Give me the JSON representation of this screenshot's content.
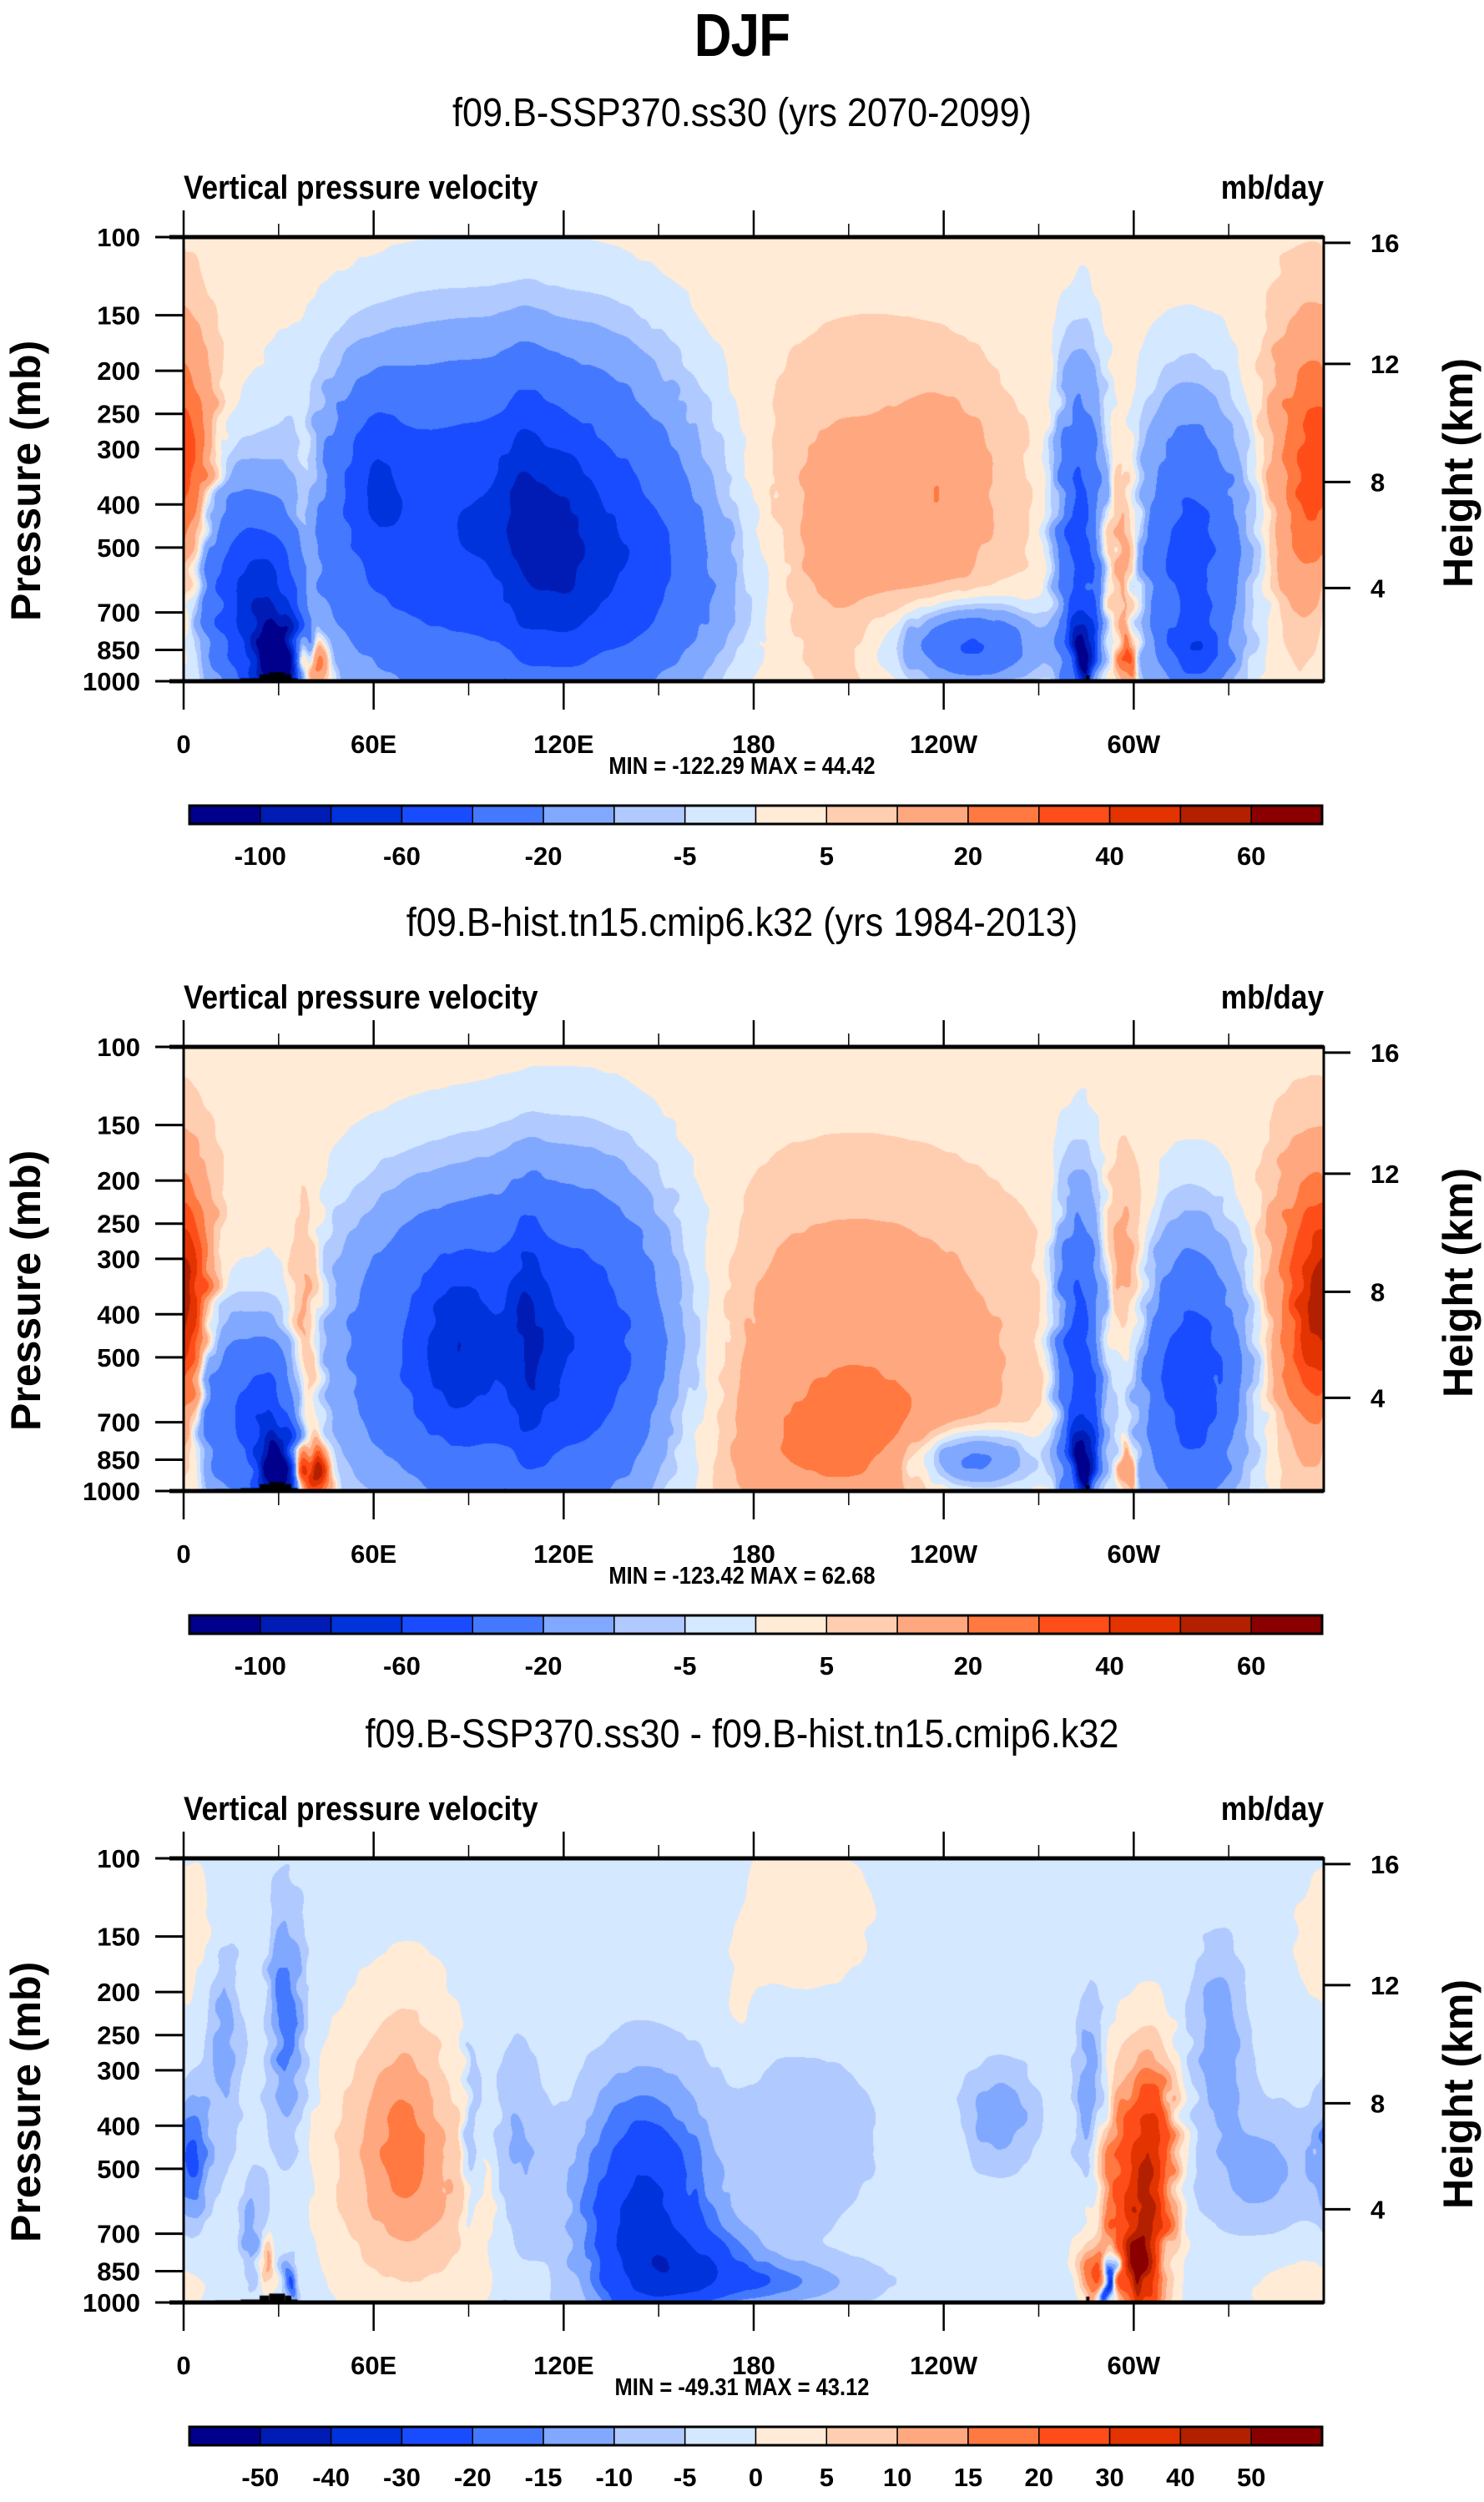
{
  "figure_title": "DJF",
  "chart_data": [
    {
      "type": "heatmap",
      "panel": "model",
      "title": "f09.B-SSP370.ss30 (yrs 2070-2099)",
      "left_string": "Vertical pressure velocity",
      "right_string": "mb/day",
      "xlabel": "",
      "ylabel": "Pressure (mb)",
      "ylabel_right": "Height (km)",
      "x_ticks": [
        "0",
        "60E",
        "120E",
        "180",
        "120W",
        "60W"
      ],
      "x_tick_lons": [
        0,
        60,
        120,
        180,
        240,
        300
      ],
      "xlim": [
        0,
        360
      ],
      "y_ticks": [
        "100",
        "150",
        "200",
        "250",
        "300",
        "400",
        "500",
        "700",
        "850",
        "1000"
      ],
      "y_tick_values": [
        100,
        150,
        200,
        250,
        300,
        400,
        500,
        700,
        850,
        1000
      ],
      "ylim": [
        1000,
        100
      ],
      "y_right_ticks": [
        "16",
        "12",
        "8",
        "4"
      ],
      "y_right_tick_pressures": [
        103,
        193,
        356,
        617
      ],
      "stats": "MIN = -122.29  MAX =  44.42",
      "min": -122.29,
      "max": 44.42,
      "levels": [
        -120,
        -100,
        -80,
        -60,
        -40,
        -20,
        -10,
        -5,
        0,
        5,
        10,
        20,
        30,
        40,
        50,
        60,
        70
      ],
      "colorbar_labels": [
        "-100",
        "-60",
        "-20",
        "-5",
        "5",
        "20",
        "40",
        "60"
      ],
      "colorbar_label_levels": [
        -100,
        -60,
        -20,
        -5,
        5,
        20,
        40,
        60
      ],
      "colors": [
        "#00008c",
        "#001cb4",
        "#0033dc",
        "#1a4cff",
        "#4479ff",
        "#80a8ff",
        "#b0c9ff",
        "#d4e8ff",
        "#ffebd6",
        "#ffcdb0",
        "#ffa880",
        "#ff7940",
        "#ff4d1a",
        "#e33300",
        "#b32000",
        "#8a0000"
      ],
      "background_value": 3,
      "features": [
        {
          "lon": 3,
          "p": 350,
          "wlon": 6,
          "wp": 160,
          "amp": 14
        },
        {
          "lon": 14,
          "p": 620,
          "wlon": 8,
          "wp": 300,
          "amp": -45
        },
        {
          "lon": 27,
          "p": 700,
          "wlon": 7,
          "wp": 260,
          "amp": -60
        },
        {
          "lon": 30,
          "p": 880,
          "wlon": 5,
          "wp": 120,
          "amp": -100
        },
        {
          "lon": 38,
          "p": 450,
          "wlon": 3,
          "wp": 250,
          "amp": 12
        },
        {
          "lon": 41,
          "p": 900,
          "wlon": 3,
          "wp": 100,
          "amp": 42
        },
        {
          "lon": 75,
          "p": 450,
          "wlon": 26,
          "wp": 380,
          "amp": -50
        },
        {
          "lon": 60,
          "p": 340,
          "wlon": 7,
          "wp": 120,
          "amp": -25
        },
        {
          "lon": 125,
          "p": 450,
          "wlon": 26,
          "wp": 380,
          "amp": -52
        },
        {
          "lon": 108,
          "p": 420,
          "wlon": 5,
          "wp": 260,
          "amp": -25
        },
        {
          "lon": 120,
          "p": 500,
          "wlon": 6,
          "wp": 240,
          "amp": -22
        },
        {
          "lon": 145,
          "p": 620,
          "wlon": 22,
          "wp": 260,
          "amp": -20
        },
        {
          "lon": 215,
          "p": 420,
          "wlon": 30,
          "wp": 330,
          "amp": 10
        },
        {
          "lon": 205,
          "p": 440,
          "wlon": 6,
          "wp": 120,
          "amp": 7
        },
        {
          "lon": 240,
          "p": 370,
          "wlon": 10,
          "wp": 140,
          "amp": 10
        },
        {
          "lon": 248,
          "p": 830,
          "wlon": 15,
          "wp": 120,
          "amp": -48
        },
        {
          "lon": 283,
          "p": 500,
          "wlon": 5,
          "wp": 420,
          "amp": -55
        },
        {
          "lon": 284,
          "p": 880,
          "wlon": 2,
          "wp": 120,
          "amp": -90
        },
        {
          "lon": 296,
          "p": 520,
          "wlon": 4,
          "wp": 250,
          "amp": 20
        },
        {
          "lon": 298,
          "p": 880,
          "wlon": 2,
          "wp": 100,
          "amp": 30
        },
        {
          "lon": 318,
          "p": 520,
          "wlon": 12,
          "wp": 380,
          "amp": -50
        },
        {
          "lon": 320,
          "p": 850,
          "wlon": 6,
          "wp": 100,
          "amp": -30
        },
        {
          "lon": 355,
          "p": 330,
          "wlon": 9,
          "wp": 220,
          "amp": 28
        }
      ]
    },
    {
      "type": "heatmap",
      "panel": "control",
      "title": "f09.B-hist.tn15.cmip6.k32 (yrs 1984-2013)",
      "left_string": "Vertical pressure velocity",
      "right_string": "mb/day",
      "xlabel": "",
      "ylabel": "Pressure (mb)",
      "ylabel_right": "Height (km)",
      "x_ticks": [
        "0",
        "60E",
        "120E",
        "180",
        "120W",
        "60W"
      ],
      "x_tick_lons": [
        0,
        60,
        120,
        180,
        240,
        300
      ],
      "xlim": [
        0,
        360
      ],
      "y_ticks": [
        "100",
        "150",
        "200",
        "250",
        "300",
        "400",
        "500",
        "700",
        "850",
        "1000"
      ],
      "y_tick_values": [
        100,
        150,
        200,
        250,
        300,
        400,
        500,
        700,
        850,
        1000
      ],
      "ylim": [
        1000,
        100
      ],
      "y_right_ticks": [
        "16",
        "12",
        "8",
        "4"
      ],
      "y_right_tick_pressures": [
        103,
        193,
        356,
        617
      ],
      "stats": "MIN = -123.42  MAX =  62.68",
      "min": -123.42,
      "max": 62.68,
      "levels": [
        -120,
        -100,
        -80,
        -60,
        -40,
        -20,
        -10,
        -5,
        0,
        5,
        10,
        20,
        30,
        40,
        50,
        60,
        70
      ],
      "colorbar_labels": [
        "-100",
        "-60",
        "-20",
        "-5",
        "5",
        "20",
        "40",
        "60"
      ],
      "colorbar_label_levels": [
        -100,
        -60,
        -20,
        -5,
        5,
        20,
        40,
        60
      ],
      "colors": [
        "#00008c",
        "#001cb4",
        "#0033dc",
        "#1a4cff",
        "#4479ff",
        "#80a8ff",
        "#b0c9ff",
        "#d4e8ff",
        "#ffebd6",
        "#ffcdb0",
        "#ffa880",
        "#ff7940",
        "#ff4d1a",
        "#e33300",
        "#b32000",
        "#8a0000"
      ],
      "background_value": 3,
      "features": [
        {
          "lon": 1,
          "p": 400,
          "wlon": 5,
          "wp": 200,
          "amp": 28
        },
        {
          "lon": 12,
          "p": 650,
          "wlon": 7,
          "wp": 280,
          "amp": -40
        },
        {
          "lon": 27,
          "p": 720,
          "wlon": 6,
          "wp": 260,
          "amp": -55
        },
        {
          "lon": 30,
          "p": 880,
          "wlon": 4,
          "wp": 110,
          "amp": -100
        },
        {
          "lon": 38,
          "p": 480,
          "wlon": 4,
          "wp": 320,
          "amp": 20
        },
        {
          "lon": 41,
          "p": 900,
          "wlon": 3,
          "wp": 90,
          "amp": 58
        },
        {
          "lon": 80,
          "p": 480,
          "wlon": 24,
          "wp": 360,
          "amp": -45
        },
        {
          "lon": 86,
          "p": 470,
          "wlon": 7,
          "wp": 160,
          "amp": -28
        },
        {
          "lon": 125,
          "p": 470,
          "wlon": 22,
          "wp": 380,
          "amp": -55
        },
        {
          "lon": 109,
          "p": 440,
          "wlon": 4,
          "wp": 240,
          "amp": -30
        },
        {
          "lon": 212,
          "p": 520,
          "wlon": 36,
          "wp": 420,
          "amp": 16
        },
        {
          "lon": 210,
          "p": 800,
          "wlon": 26,
          "wp": 180,
          "amp": 10
        },
        {
          "lon": 248,
          "p": 850,
          "wlon": 14,
          "wp": 100,
          "amp": -35
        },
        {
          "lon": 283,
          "p": 520,
          "wlon": 5,
          "wp": 420,
          "amp": -60
        },
        {
          "lon": 284,
          "p": 880,
          "wlon": 2,
          "wp": 120,
          "amp": -100
        },
        {
          "lon": 297,
          "p": 330,
          "wlon": 6,
          "wp": 160,
          "amp": 15
        },
        {
          "lon": 298,
          "p": 880,
          "wlon": 2,
          "wp": 100,
          "amp": 25
        },
        {
          "lon": 318,
          "p": 560,
          "wlon": 12,
          "wp": 380,
          "amp": -55
        },
        {
          "lon": 355,
          "p": 370,
          "wlon": 9,
          "wp": 230,
          "amp": 34
        }
      ]
    },
    {
      "type": "heatmap",
      "panel": "difference",
      "title": "f09.B-SSP370.ss30 - f09.B-hist.tn15.cmip6.k32",
      "left_string": "Vertical pressure velocity",
      "right_string": "mb/day",
      "xlabel": "",
      "ylabel": "Pressure (mb)",
      "ylabel_right": "Height (km)",
      "x_ticks": [
        "0",
        "60E",
        "120E",
        "180",
        "120W",
        "60W"
      ],
      "x_tick_lons": [
        0,
        60,
        120,
        180,
        240,
        300
      ],
      "xlim": [
        0,
        360
      ],
      "y_ticks": [
        "100",
        "150",
        "200",
        "250",
        "300",
        "400",
        "500",
        "700",
        "850",
        "1000"
      ],
      "y_tick_values": [
        100,
        150,
        200,
        250,
        300,
        400,
        500,
        700,
        850,
        1000
      ],
      "ylim": [
        1000,
        100
      ],
      "y_right_ticks": [
        "16",
        "12",
        "8",
        "4"
      ],
      "y_right_tick_pressures": [
        103,
        193,
        356,
        617
      ],
      "stats": "MIN = -49.31  MAX =  43.12",
      "min": -49.31,
      "max": 43.12,
      "levels": [
        -60,
        -50,
        -40,
        -30,
        -20,
        -15,
        -10,
        -5,
        0,
        5,
        10,
        15,
        20,
        30,
        40,
        50,
        60
      ],
      "colorbar_labels": [
        "-50",
        "-40",
        "-30",
        "-20",
        "-15",
        "-10",
        "-5",
        "0",
        "5",
        "10",
        "15",
        "20",
        "30",
        "40",
        "50"
      ],
      "colorbar_label_levels": [
        -50,
        -40,
        -30,
        -20,
        -15,
        -10,
        -5,
        0,
        5,
        10,
        15,
        20,
        30,
        40,
        50
      ],
      "colors": [
        "#00008c",
        "#001cb4",
        "#0033dc",
        "#1a4cff",
        "#4479ff",
        "#80a8ff",
        "#b0c9ff",
        "#d4e8ff",
        "#ffebd6",
        "#ffcdb0",
        "#ffa880",
        "#ff7940",
        "#ff4d1a",
        "#e33300",
        "#b32000",
        "#8a0000"
      ],
      "background_value": -2,
      "features": [
        {
          "lon": 5,
          "p": 150,
          "wlon": 12,
          "wp": 60,
          "amp": 4
        },
        {
          "lon": 3,
          "p": 470,
          "wlon": 4,
          "wp": 130,
          "amp": -17
        },
        {
          "lon": 13,
          "p": 240,
          "wlon": 4,
          "wp": 110,
          "amp": -12
        },
        {
          "lon": 22,
          "p": 700,
          "wlon": 3,
          "wp": 160,
          "amp": -12
        },
        {
          "lon": 26,
          "p": 800,
          "wlon": 2,
          "wp": 80,
          "amp": 18
        },
        {
          "lon": 32,
          "p": 230,
          "wlon": 4,
          "wp": 130,
          "amp": -16
        },
        {
          "lon": 34,
          "p": 900,
          "wlon": 2,
          "wp": 80,
          "amp": -20
        },
        {
          "lon": 56,
          "p": 480,
          "wlon": 10,
          "wp": 300,
          "amp": 9
        },
        {
          "lon": 70,
          "p": 440,
          "wlon": 8,
          "wp": 260,
          "amp": 11
        },
        {
          "lon": 85,
          "p": 560,
          "wlon": 12,
          "wp": 280,
          "amp": 9
        },
        {
          "lon": 73,
          "p": 280,
          "wlon": 10,
          "wp": 140,
          "amp": 3
        },
        {
          "lon": 91,
          "p": 420,
          "wlon": 2,
          "wp": 180,
          "amp": -12
        },
        {
          "lon": 105,
          "p": 450,
          "wlon": 6,
          "wp": 220,
          "amp": -10
        },
        {
          "lon": 145,
          "p": 620,
          "wlon": 14,
          "wp": 360,
          "amp": -30
        },
        {
          "lon": 160,
          "p": 830,
          "wlon": 16,
          "wp": 140,
          "amp": -16
        },
        {
          "lon": 185,
          "p": 900,
          "wlon": 22,
          "wp": 80,
          "amp": -12
        },
        {
          "lon": 195,
          "p": 420,
          "wlon": 20,
          "wp": 220,
          "amp": -6
        },
        {
          "lon": 175,
          "p": 240,
          "wlon": 5,
          "wp": 60,
          "amp": 3
        },
        {
          "lon": 196,
          "p": 140,
          "wlon": 16,
          "wp": 60,
          "amp": 5
        },
        {
          "lon": 258,
          "p": 380,
          "wlon": 8,
          "wp": 80,
          "amp": -12
        },
        {
          "lon": 286,
          "p": 340,
          "wlon": 3,
          "wp": 140,
          "amp": -14
        },
        {
          "lon": 287,
          "p": 860,
          "wlon": 3,
          "wp": 100,
          "amp": 20
        },
        {
          "lon": 292,
          "p": 900,
          "wlon": 1.5,
          "wp": 90,
          "amp": -48
        },
        {
          "lon": 297,
          "p": 600,
          "wlon": 6,
          "wp": 350,
          "amp": 25
        },
        {
          "lon": 302,
          "p": 850,
          "wlon": 3,
          "wp": 150,
          "amp": 35
        },
        {
          "lon": 306,
          "p": 500,
          "wlon": 5,
          "wp": 240,
          "amp": 35
        },
        {
          "lon": 327,
          "p": 250,
          "wlon": 6,
          "wp": 100,
          "amp": -12
        },
        {
          "lon": 340,
          "p": 520,
          "wlon": 14,
          "wp": 160,
          "amp": -10
        },
        {
          "lon": 350,
          "p": 850,
          "wlon": 18,
          "wp": 200,
          "amp": 4
        }
      ]
    }
  ],
  "topography": [
    {
      "lon0": 10,
      "lon1": 18,
      "p": 990
    },
    {
      "lon0": 18,
      "lon1": 24,
      "p": 985
    },
    {
      "lon0": 24,
      "lon1": 27,
      "p": 965
    },
    {
      "lon0": 27,
      "lon1": 32,
      "p": 955
    },
    {
      "lon0": 32,
      "lon1": 34,
      "p": 965
    },
    {
      "lon0": 34,
      "lon1": 36,
      "p": 985
    },
    {
      "lon0": 101,
      "lon1": 102,
      "p": 990
    },
    {
      "lon0": 113,
      "lon1": 119,
      "p": 992
    },
    {
      "lon0": 121,
      "lon1": 156,
      "p": 992
    },
    {
      "lon0": 285,
      "lon1": 286,
      "p": 970
    },
    {
      "lon0": 285,
      "lon1": 305,
      "p": 993
    }
  ]
}
